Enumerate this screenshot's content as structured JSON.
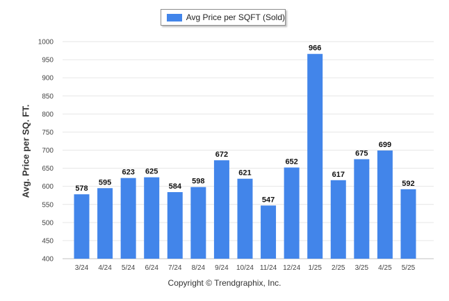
{
  "legend": {
    "label": "Avg Price per SQFT (Sold)"
  },
  "credit": "Copyright © Trendgraphix, Inc.",
  "colors": {
    "bar": "#4285ea"
  },
  "chart_data": {
    "type": "bar",
    "categories": [
      "3/24",
      "4/24",
      "5/24",
      "6/24",
      "7/24",
      "8/24",
      "9/24",
      "10/24",
      "11/24",
      "12/24",
      "1/25",
      "2/25",
      "3/25",
      "4/25",
      "5/25"
    ],
    "series": [
      {
        "name": "Avg Price per SQFT (Sold)",
        "values": [
          578,
          595,
          623,
          625,
          584,
          598,
          672,
          621,
          547,
          652,
          966,
          617,
          675,
          699,
          592
        ]
      }
    ],
    "ylabel": "Avg. Price per SQ. FT.",
    "xlabel": "",
    "ylim": [
      400,
      1000
    ],
    "yticks": [
      400,
      450,
      500,
      550,
      600,
      650,
      700,
      750,
      800,
      850,
      900,
      950,
      1000
    ],
    "grid": true,
    "legend_position": "top-center",
    "data_labels": true
  }
}
